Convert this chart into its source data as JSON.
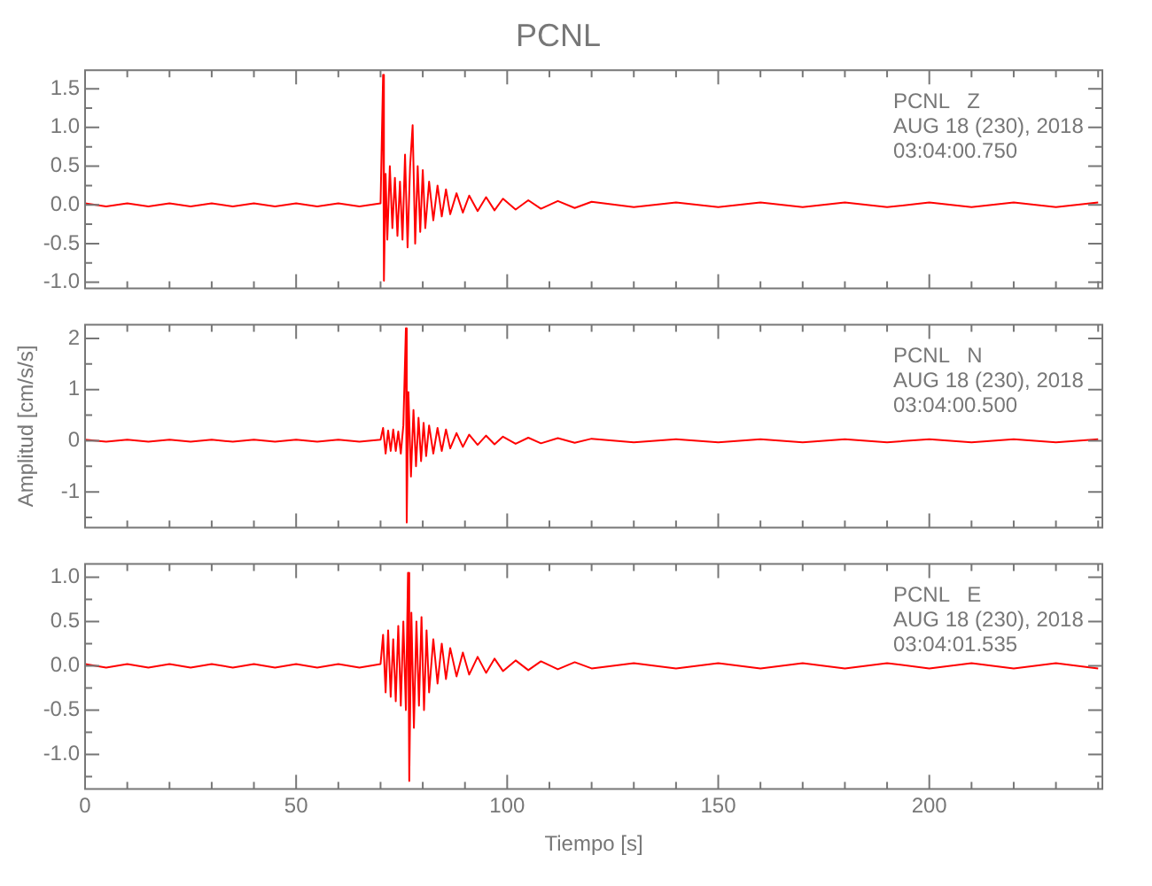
{
  "chart_data": [
    {
      "type": "line",
      "title": "PCNL",
      "color": "#ff0000",
      "marker": "none",
      "tick_labels": "y",
      "annotations": [
        "PCNL   Z",
        "AUG 18 (230), 2018",
        "03:04:00.750"
      ],
      "xlim": [
        0,
        241
      ],
      "xticks": [
        0,
        {
          "value": 10,
          "label": null
        },
        {
          "value": 20,
          "label": null
        },
        {
          "value": 30,
          "label": null
        },
        {
          "value": 40,
          "label": null
        },
        50,
        {
          "value": 60,
          "label": null
        },
        {
          "value": 70,
          "label": null
        },
        {
          "value": 80,
          "label": null
        },
        {
          "value": 90,
          "label": null
        },
        100,
        {
          "value": 110,
          "label": null
        },
        {
          "value": 120,
          "label": null
        },
        {
          "value": 130,
          "label": null
        },
        {
          "value": 140,
          "label": null
        },
        150,
        {
          "value": 160,
          "label": null
        },
        {
          "value": 170,
          "label": null
        },
        {
          "value": 180,
          "label": null
        },
        {
          "value": 190,
          "label": null
        },
        200,
        {
          "value": 210,
          "label": null
        },
        {
          "value": 220,
          "label": null
        },
        {
          "value": 230,
          "label": null
        },
        {
          "value": 240,
          "label": null
        }
      ],
      "ylim": [
        -1.08,
        1.74
      ],
      "yticks": [
        {
          "value": -1,
          "label": "-1.0"
        },
        {
          "value": -0.75,
          "label": null
        },
        -0.5,
        {
          "value": -0.25,
          "label": null
        },
        {
          "value": 0,
          "label": "0.0"
        },
        {
          "value": 0.25,
          "label": null
        },
        0.5,
        {
          "value": 0.75,
          "label": null
        },
        {
          "value": 1,
          "label": "1.0"
        },
        {
          "value": 1.25,
          "label": null
        },
        1.5
      ],
      "x": [
        0,
        5,
        10,
        15,
        20,
        25,
        30,
        35,
        40,
        45,
        50,
        55,
        60,
        65,
        70,
        70.6,
        70.8,
        71.2,
        71.6,
        72.2,
        72.8,
        73.4,
        74,
        74.6,
        75.2,
        75.8,
        76.4,
        77,
        77.6,
        78.2,
        78.8,
        79.4,
        80,
        80.6,
        81.5,
        82.5,
        83.5,
        84.5,
        85.5,
        86.5,
        88,
        89.5,
        91,
        93,
        95,
        97,
        99,
        102,
        105,
        108,
        112,
        116,
        120,
        130,
        140,
        150,
        160,
        170,
        180,
        190,
        200,
        210,
        220,
        230,
        240
      ],
      "values": [
        0.02,
        -0.02,
        0.02,
        -0.02,
        0.02,
        -0.02,
        0.02,
        -0.02,
        0.02,
        -0.02,
        0.02,
        -0.02,
        0.02,
        -0.02,
        0.02,
        1.68,
        -0.98,
        0.4,
        -0.45,
        0.5,
        -0.3,
        0.35,
        -0.4,
        0.3,
        -0.45,
        0.65,
        -0.55,
        0.5,
        1.03,
        -0.5,
        0.5,
        -0.35,
        0.45,
        -0.3,
        0.3,
        -0.2,
        0.25,
        -0.15,
        0.2,
        -0.12,
        0.15,
        -0.1,
        0.12,
        -0.08,
        0.1,
        -0.07,
        0.08,
        -0.06,
        0.06,
        -0.05,
        0.05,
        -0.04,
        0.04,
        -0.03,
        0.03,
        -0.03,
        0.03,
        -0.03,
        0.03,
        -0.03,
        0.03,
        -0.03,
        0.03,
        -0.03,
        0.03
      ]
    },
    {
      "type": "line",
      "ylabel": "Amplitud [cm/s/s]",
      "color": "#ff0000",
      "marker": "none",
      "tick_labels": "y",
      "annotations": [
        "PCNL   N",
        "AUG 18 (230), 2018",
        "03:04:00.500"
      ],
      "xlim": [
        0,
        241
      ],
      "xticks": [
        0,
        {
          "value": 10,
          "label": null
        },
        {
          "value": 20,
          "label": null
        },
        {
          "value": 30,
          "label": null
        },
        {
          "value": 40,
          "label": null
        },
        50,
        {
          "value": 60,
          "label": null
        },
        {
          "value": 70,
          "label": null
        },
        {
          "value": 80,
          "label": null
        },
        {
          "value": 90,
          "label": null
        },
        100,
        {
          "value": 110,
          "label": null
        },
        {
          "value": 120,
          "label": null
        },
        {
          "value": 130,
          "label": null
        },
        {
          "value": 140,
          "label": null
        },
        150,
        {
          "value": 160,
          "label": null
        },
        {
          "value": 170,
          "label": null
        },
        {
          "value": 180,
          "label": null
        },
        {
          "value": 190,
          "label": null
        },
        200,
        {
          "value": 210,
          "label": null
        },
        {
          "value": 220,
          "label": null
        },
        {
          "value": 230,
          "label": null
        },
        {
          "value": 240,
          "label": null
        }
      ],
      "ylim": [
        -1.7,
        2.27
      ],
      "yticks": [
        {
          "value": -1.5,
          "label": null
        },
        -1,
        {
          "value": -0.5,
          "label": null
        },
        0,
        {
          "value": 0.5,
          "label": null
        },
        1,
        {
          "value": 1.5,
          "label": null
        },
        2
      ],
      "x": [
        0,
        5,
        10,
        15,
        20,
        25,
        30,
        35,
        40,
        45,
        50,
        55,
        60,
        65,
        70,
        70.6,
        71.2,
        71.8,
        72.4,
        73,
        73.6,
        74.2,
        74.8,
        75.4,
        76,
        76.2,
        76.6,
        77.2,
        77.8,
        78.4,
        79,
        79.6,
        80.2,
        80.8,
        81.5,
        82.5,
        83.5,
        84.5,
        85.5,
        86.5,
        88,
        89.5,
        91,
        93,
        95,
        97,
        99,
        102,
        105,
        108,
        112,
        116,
        120,
        130,
        140,
        150,
        160,
        170,
        180,
        190,
        200,
        210,
        220,
        230,
        240
      ],
      "values": [
        0.02,
        -0.02,
        0.02,
        -0.02,
        0.02,
        -0.02,
        0.02,
        -0.02,
        0.02,
        -0.02,
        0.02,
        -0.02,
        0.02,
        -0.02,
        0.02,
        0.25,
        -0.25,
        0.2,
        -0.2,
        0.22,
        -0.2,
        0.18,
        -0.25,
        0.3,
        2.2,
        -1.6,
        0.95,
        -0.7,
        0.6,
        -0.5,
        0.45,
        -0.4,
        0.35,
        -0.3,
        0.3,
        -0.25,
        0.25,
        -0.2,
        0.22,
        -0.15,
        0.15,
        -0.12,
        0.12,
        -0.08,
        0.1,
        -0.07,
        0.08,
        -0.06,
        0.06,
        -0.05,
        0.05,
        -0.04,
        0.04,
        -0.03,
        0.03,
        -0.03,
        0.03,
        -0.03,
        0.03,
        -0.03,
        0.03,
        -0.03,
        0.03,
        -0.03,
        0.03
      ]
    },
    {
      "type": "line",
      "xlabel": "Tiempo [s]",
      "color": "#ff0000",
      "marker": "none",
      "annotations": [
        "PCNL   E",
        "AUG 18 (230), 2018",
        "03:04:01.535"
      ],
      "xlim": [
        0,
        241
      ],
      "xticks": [
        0,
        {
          "value": 10,
          "label": null
        },
        {
          "value": 20,
          "label": null
        },
        {
          "value": 30,
          "label": null
        },
        {
          "value": 40,
          "label": null
        },
        50,
        {
          "value": 60,
          "label": null
        },
        {
          "value": 70,
          "label": null
        },
        {
          "value": 80,
          "label": null
        },
        {
          "value": 90,
          "label": null
        },
        100,
        {
          "value": 110,
          "label": null
        },
        {
          "value": 120,
          "label": null
        },
        {
          "value": 130,
          "label": null
        },
        {
          "value": 140,
          "label": null
        },
        150,
        {
          "value": 160,
          "label": null
        },
        {
          "value": 170,
          "label": null
        },
        {
          "value": 180,
          "label": null
        },
        {
          "value": 190,
          "label": null
        },
        200,
        {
          "value": 210,
          "label": null
        },
        {
          "value": 220,
          "label": null
        },
        {
          "value": 230,
          "label": null
        },
        {
          "value": 240,
          "label": null
        }
      ],
      "ylim": [
        -1.39,
        1.15
      ],
      "yticks": [
        {
          "value": -1.25,
          "label": null
        },
        {
          "value": -1,
          "label": "-1.0"
        },
        {
          "value": -0.75,
          "label": null
        },
        -0.5,
        {
          "value": -0.25,
          "label": null
        },
        {
          "value": 0,
          "label": "0.0"
        },
        {
          "value": 0.25,
          "label": null
        },
        0.5,
        {
          "value": 0.75,
          "label": null
        },
        {
          "value": 1,
          "label": "1.0"
        }
      ],
      "x": [
        0,
        5,
        10,
        15,
        20,
        25,
        30,
        35,
        40,
        45,
        50,
        55,
        60,
        65,
        70,
        70.6,
        71.2,
        71.8,
        72.4,
        73,
        73.6,
        74.2,
        74.8,
        75.4,
        76,
        76.5,
        76.8,
        77.3,
        77.9,
        78.5,
        79.1,
        79.7,
        80.3,
        80.9,
        81.5,
        82.5,
        83.5,
        84.5,
        85.5,
        86.5,
        88,
        89.5,
        91,
        93,
        95,
        97,
        99,
        102,
        105,
        108,
        112,
        116,
        120,
        130,
        140,
        150,
        160,
        170,
        180,
        190,
        200,
        210,
        220,
        230,
        240
      ],
      "values": [
        0.02,
        -0.02,
        0.02,
        -0.02,
        0.02,
        -0.02,
        0.02,
        -0.02,
        0.02,
        -0.02,
        0.02,
        -0.02,
        0.02,
        -0.02,
        0.02,
        0.35,
        -0.3,
        0.4,
        -0.35,
        0.3,
        -0.4,
        0.45,
        -0.45,
        0.5,
        -0.5,
        1.05,
        -1.3,
        0.6,
        -0.7,
        0.5,
        -0.45,
        0.55,
        -0.5,
        0.4,
        -0.3,
        0.3,
        -0.2,
        0.25,
        -0.15,
        0.2,
        -0.12,
        0.15,
        -0.1,
        0.1,
        -0.08,
        0.08,
        -0.06,
        0.06,
        -0.05,
        0.05,
        -0.04,
        0.04,
        -0.03,
        0.03,
        -0.03,
        0.03,
        -0.03,
        0.03,
        -0.03,
        0.03,
        -0.03,
        0.03,
        -0.03,
        0.03,
        -0.03
      ]
    }
  ]
}
